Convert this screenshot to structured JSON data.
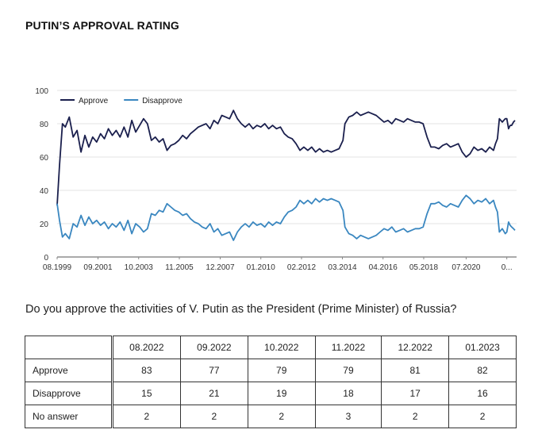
{
  "page": {
    "title": "PUTIN’S APPROVAL RATING",
    "question": "Do you approve the activities of V. Putin as the President (Prime Minister) of Russia?"
  },
  "chart_data": {
    "type": "line",
    "ylim": [
      0,
      100
    ],
    "yticks": [
      0,
      20,
      40,
      60,
      80,
      100
    ],
    "xticks": [
      {
        "label": "08.1999",
        "t": 1999.58
      },
      {
        "label": "09.2001",
        "t": 2001.67
      },
      {
        "label": "10.2003",
        "t": 2003.75
      },
      {
        "label": "11.2005",
        "t": 2005.83
      },
      {
        "label": "12.2007",
        "t": 2007.92
      },
      {
        "label": "01.2010",
        "t": 2010.0
      },
      {
        "label": "02.2012",
        "t": 2012.08
      },
      {
        "label": "03.2014",
        "t": 2014.17
      },
      {
        "label": "04.2016",
        "t": 2016.25
      },
      {
        "label": "05.2018",
        "t": 2018.33
      },
      {
        "label": "07.2020",
        "t": 2020.5
      },
      {
        "label": "0...",
        "t": 2022.58
      }
    ],
    "xlim": [
      1999.58,
      2023.08
    ],
    "legend_position": "top-left",
    "grid": true,
    "series": [
      {
        "name": "Approve",
        "color": "#1a1f4d",
        "points": [
          [
            1999.58,
            31
          ],
          [
            1999.7,
            55
          ],
          [
            1999.85,
            80
          ],
          [
            2000.0,
            78
          ],
          [
            2000.2,
            84
          ],
          [
            2000.4,
            72
          ],
          [
            2000.6,
            76
          ],
          [
            2000.8,
            63
          ],
          [
            2001.0,
            73
          ],
          [
            2001.2,
            66
          ],
          [
            2001.4,
            72
          ],
          [
            2001.6,
            69
          ],
          [
            2001.8,
            74
          ],
          [
            2002.0,
            71
          ],
          [
            2002.2,
            77
          ],
          [
            2002.4,
            73
          ],
          [
            2002.6,
            76
          ],
          [
            2002.8,
            72
          ],
          [
            2003.0,
            78
          ],
          [
            2003.2,
            72
          ],
          [
            2003.4,
            82
          ],
          [
            2003.6,
            75
          ],
          [
            2003.8,
            79
          ],
          [
            2004.0,
            83
          ],
          [
            2004.2,
            80
          ],
          [
            2004.4,
            70
          ],
          [
            2004.6,
            72
          ],
          [
            2004.8,
            69
          ],
          [
            2005.0,
            71
          ],
          [
            2005.2,
            64
          ],
          [
            2005.4,
            67
          ],
          [
            2005.6,
            68
          ],
          [
            2005.8,
            70
          ],
          [
            2006.0,
            73
          ],
          [
            2006.2,
            71
          ],
          [
            2006.4,
            74
          ],
          [
            2006.6,
            76
          ],
          [
            2006.8,
            78
          ],
          [
            2007.0,
            79
          ],
          [
            2007.2,
            80
          ],
          [
            2007.4,
            77
          ],
          [
            2007.6,
            82
          ],
          [
            2007.8,
            80
          ],
          [
            2008.0,
            85
          ],
          [
            2008.2,
            84
          ],
          [
            2008.4,
            83
          ],
          [
            2008.6,
            88
          ],
          [
            2008.8,
            83
          ],
          [
            2009.0,
            80
          ],
          [
            2009.2,
            78
          ],
          [
            2009.4,
            80
          ],
          [
            2009.6,
            77
          ],
          [
            2009.8,
            79
          ],
          [
            2010.0,
            78
          ],
          [
            2010.2,
            80
          ],
          [
            2010.4,
            77
          ],
          [
            2010.6,
            79
          ],
          [
            2010.8,
            77
          ],
          [
            2011.0,
            78
          ],
          [
            2011.2,
            74
          ],
          [
            2011.4,
            72
          ],
          [
            2011.6,
            71
          ],
          [
            2011.8,
            68
          ],
          [
            2012.0,
            64
          ],
          [
            2012.2,
            66
          ],
          [
            2012.4,
            64
          ],
          [
            2012.6,
            66
          ],
          [
            2012.8,
            63
          ],
          [
            2013.0,
            65
          ],
          [
            2013.2,
            63
          ],
          [
            2013.4,
            64
          ],
          [
            2013.6,
            63
          ],
          [
            2013.8,
            64
          ],
          [
            2014.0,
            65
          ],
          [
            2014.2,
            70
          ],
          [
            2014.3,
            80
          ],
          [
            2014.5,
            84
          ],
          [
            2014.7,
            85
          ],
          [
            2014.9,
            87
          ],
          [
            2015.1,
            85
          ],
          [
            2015.3,
            86
          ],
          [
            2015.5,
            87
          ],
          [
            2015.7,
            86
          ],
          [
            2015.9,
            85
          ],
          [
            2016.1,
            83
          ],
          [
            2016.3,
            81
          ],
          [
            2016.5,
            82
          ],
          [
            2016.7,
            80
          ],
          [
            2016.9,
            83
          ],
          [
            2017.1,
            82
          ],
          [
            2017.3,
            81
          ],
          [
            2017.5,
            83
          ],
          [
            2017.7,
            82
          ],
          [
            2017.9,
            81
          ],
          [
            2018.1,
            81
          ],
          [
            2018.3,
            80
          ],
          [
            2018.5,
            72
          ],
          [
            2018.7,
            66
          ],
          [
            2018.9,
            66
          ],
          [
            2019.1,
            65
          ],
          [
            2019.3,
            67
          ],
          [
            2019.5,
            68
          ],
          [
            2019.7,
            66
          ],
          [
            2019.9,
            67
          ],
          [
            2020.1,
            68
          ],
          [
            2020.3,
            63
          ],
          [
            2020.5,
            60
          ],
          [
            2020.7,
            62
          ],
          [
            2020.9,
            66
          ],
          [
            2021.1,
            64
          ],
          [
            2021.3,
            65
          ],
          [
            2021.5,
            63
          ],
          [
            2021.7,
            66
          ],
          [
            2021.9,
            64
          ],
          [
            2022.0,
            68
          ],
          [
            2022.1,
            71
          ],
          [
            2022.2,
            83
          ],
          [
            2022.35,
            81
          ],
          [
            2022.5,
            83
          ],
          [
            2022.58,
            83
          ],
          [
            2022.67,
            77
          ],
          [
            2022.75,
            79
          ],
          [
            2022.83,
            79
          ],
          [
            2022.92,
            81
          ],
          [
            2023.0,
            82
          ]
        ]
      },
      {
        "name": "Disapprove",
        "color": "#3a87c0",
        "points": [
          [
            1999.58,
            32
          ],
          [
            1999.7,
            22
          ],
          [
            1999.85,
            12
          ],
          [
            2000.0,
            14
          ],
          [
            2000.2,
            11
          ],
          [
            2000.4,
            20
          ],
          [
            2000.6,
            18
          ],
          [
            2000.8,
            25
          ],
          [
            2001.0,
            19
          ],
          [
            2001.2,
            24
          ],
          [
            2001.4,
            20
          ],
          [
            2001.6,
            22
          ],
          [
            2001.8,
            19
          ],
          [
            2002.0,
            21
          ],
          [
            2002.2,
            17
          ],
          [
            2002.4,
            20
          ],
          [
            2002.6,
            18
          ],
          [
            2002.8,
            21
          ],
          [
            2003.0,
            16
          ],
          [
            2003.2,
            22
          ],
          [
            2003.4,
            14
          ],
          [
            2003.6,
            20
          ],
          [
            2003.8,
            18
          ],
          [
            2004.0,
            15
          ],
          [
            2004.2,
            17
          ],
          [
            2004.4,
            26
          ],
          [
            2004.6,
            25
          ],
          [
            2004.8,
            28
          ],
          [
            2005.0,
            27
          ],
          [
            2005.2,
            32
          ],
          [
            2005.4,
            30
          ],
          [
            2005.6,
            28
          ],
          [
            2005.8,
            27
          ],
          [
            2006.0,
            25
          ],
          [
            2006.2,
            26
          ],
          [
            2006.4,
            23
          ],
          [
            2006.6,
            21
          ],
          [
            2006.8,
            20
          ],
          [
            2007.0,
            18
          ],
          [
            2007.2,
            17
          ],
          [
            2007.4,
            20
          ],
          [
            2007.6,
            15
          ],
          [
            2007.8,
            17
          ],
          [
            2008.0,
            13
          ],
          [
            2008.2,
            14
          ],
          [
            2008.4,
            15
          ],
          [
            2008.6,
            10
          ],
          [
            2008.8,
            15
          ],
          [
            2009.0,
            18
          ],
          [
            2009.2,
            20
          ],
          [
            2009.4,
            18
          ],
          [
            2009.6,
            21
          ],
          [
            2009.8,
            19
          ],
          [
            2010.0,
            20
          ],
          [
            2010.2,
            18
          ],
          [
            2010.4,
            21
          ],
          [
            2010.6,
            19
          ],
          [
            2010.8,
            21
          ],
          [
            2011.0,
            20
          ],
          [
            2011.2,
            24
          ],
          [
            2011.4,
            27
          ],
          [
            2011.6,
            28
          ],
          [
            2011.8,
            30
          ],
          [
            2012.0,
            34
          ],
          [
            2012.2,
            32
          ],
          [
            2012.4,
            34
          ],
          [
            2012.6,
            32
          ],
          [
            2012.8,
            35
          ],
          [
            2013.0,
            33
          ],
          [
            2013.2,
            35
          ],
          [
            2013.4,
            34
          ],
          [
            2013.6,
            35
          ],
          [
            2013.8,
            34
          ],
          [
            2014.0,
            33
          ],
          [
            2014.2,
            28
          ],
          [
            2014.3,
            18
          ],
          [
            2014.5,
            14
          ],
          [
            2014.7,
            13
          ],
          [
            2014.9,
            11
          ],
          [
            2015.1,
            13
          ],
          [
            2015.3,
            12
          ],
          [
            2015.5,
            11
          ],
          [
            2015.7,
            12
          ],
          [
            2015.9,
            13
          ],
          [
            2016.1,
            15
          ],
          [
            2016.3,
            17
          ],
          [
            2016.5,
            16
          ],
          [
            2016.7,
            18
          ],
          [
            2016.9,
            15
          ],
          [
            2017.1,
            16
          ],
          [
            2017.3,
            17
          ],
          [
            2017.5,
            15
          ],
          [
            2017.7,
            16
          ],
          [
            2017.9,
            17
          ],
          [
            2018.1,
            17
          ],
          [
            2018.3,
            18
          ],
          [
            2018.5,
            26
          ],
          [
            2018.7,
            32
          ],
          [
            2018.9,
            32
          ],
          [
            2019.1,
            33
          ],
          [
            2019.3,
            31
          ],
          [
            2019.5,
            30
          ],
          [
            2019.7,
            32
          ],
          [
            2019.9,
            31
          ],
          [
            2020.1,
            30
          ],
          [
            2020.3,
            34
          ],
          [
            2020.5,
            37
          ],
          [
            2020.7,
            35
          ],
          [
            2020.9,
            32
          ],
          [
            2021.1,
            34
          ],
          [
            2021.3,
            33
          ],
          [
            2021.5,
            35
          ],
          [
            2021.7,
            32
          ],
          [
            2021.9,
            34
          ],
          [
            2022.0,
            30
          ],
          [
            2022.1,
            27
          ],
          [
            2022.2,
            15
          ],
          [
            2022.35,
            17
          ],
          [
            2022.5,
            14
          ],
          [
            2022.58,
            15
          ],
          [
            2022.67,
            21
          ],
          [
            2022.75,
            19
          ],
          [
            2022.83,
            18
          ],
          [
            2022.92,
            17
          ],
          [
            2023.0,
            16
          ]
        ]
      }
    ]
  },
  "table": {
    "headers": [
      "08.2022",
      "09.2022",
      "10.2022",
      "11.2022",
      "12.2022",
      "01.2023"
    ],
    "rows": [
      {
        "label": "Approve",
        "values": [
          "83",
          "77",
          "79",
          "79",
          "81",
          "82"
        ]
      },
      {
        "label": "Disapprove",
        "values": [
          "15",
          "21",
          "19",
          "18",
          "17",
          "16"
        ]
      },
      {
        "label": "No answer",
        "values": [
          "2",
          "2",
          "2",
          "3",
          "2",
          "2"
        ]
      }
    ]
  }
}
